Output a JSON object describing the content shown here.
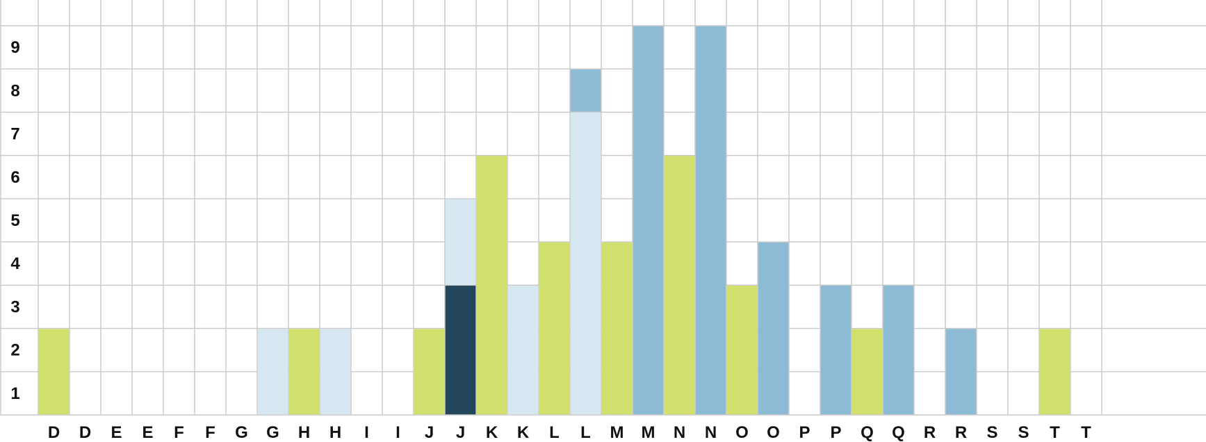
{
  "chart_data": {
    "type": "bar",
    "title": "",
    "xlabel": "",
    "ylabel": "",
    "ylim": [
      0,
      9
    ],
    "grid": true,
    "legend": "none",
    "categories": [
      "D",
      "D",
      "E",
      "E",
      "F",
      "F",
      "G",
      "G",
      "H",
      "H",
      "I",
      "I",
      "J",
      "J",
      "K",
      "K",
      "L",
      "L",
      "M",
      "M",
      "N",
      "N",
      "O",
      "O",
      "P",
      "P",
      "Q",
      "Q",
      "R",
      "R",
      "S",
      "S",
      "T",
      "T"
    ],
    "y_ticks": [
      "1",
      "2",
      "3",
      "4",
      "5",
      "6",
      "7",
      "8",
      "9"
    ],
    "colors": {
      "green": "#d1df6c",
      "light_blue": "#d6e7f1",
      "mid_blue": "#8dbbd6",
      "dark_navy": "#23465a",
      "grid": "#c8c8c8"
    },
    "columns": [
      {
        "index": 0,
        "segments": [
          {
            "color": "green",
            "value": 2
          }
        ]
      },
      {
        "index": 7,
        "segments": [
          {
            "color": "light_blue",
            "value": 2
          }
        ]
      },
      {
        "index": 8,
        "segments": [
          {
            "color": "green",
            "value": 2
          }
        ]
      },
      {
        "index": 9,
        "segments": [
          {
            "color": "light_blue",
            "value": 2
          }
        ]
      },
      {
        "index": 12,
        "segments": [
          {
            "color": "green",
            "value": 2
          }
        ]
      },
      {
        "index": 13,
        "segments": [
          {
            "color": "dark_navy",
            "value": 3
          },
          {
            "color": "light_blue",
            "value": 2
          }
        ]
      },
      {
        "index": 14,
        "segments": [
          {
            "color": "green",
            "value": 6
          }
        ]
      },
      {
        "index": 15,
        "segments": [
          {
            "color": "light_blue",
            "value": 3
          }
        ]
      },
      {
        "index": 16,
        "segments": [
          {
            "color": "green",
            "value": 4
          }
        ]
      },
      {
        "index": 17,
        "segments": [
          {
            "color": "light_blue",
            "value": 7
          },
          {
            "color": "mid_blue",
            "value": 1
          }
        ]
      },
      {
        "index": 18,
        "segments": [
          {
            "color": "green",
            "value": 4
          }
        ]
      },
      {
        "index": 19,
        "segments": [
          {
            "color": "mid_blue",
            "value": 9
          }
        ]
      },
      {
        "index": 20,
        "segments": [
          {
            "color": "green",
            "value": 6
          }
        ]
      },
      {
        "index": 21,
        "segments": [
          {
            "color": "mid_blue",
            "value": 9
          }
        ]
      },
      {
        "index": 22,
        "segments": [
          {
            "color": "green",
            "value": 3
          }
        ]
      },
      {
        "index": 23,
        "segments": [
          {
            "color": "mid_blue",
            "value": 4
          }
        ]
      },
      {
        "index": 25,
        "segments": [
          {
            "color": "mid_blue",
            "value": 3
          }
        ]
      },
      {
        "index": 26,
        "segments": [
          {
            "color": "green",
            "value": 2
          }
        ]
      },
      {
        "index": 27,
        "segments": [
          {
            "color": "mid_blue",
            "value": 3
          }
        ]
      },
      {
        "index": 29,
        "segments": [
          {
            "color": "mid_blue",
            "value": 2
          }
        ]
      },
      {
        "index": 32,
        "segments": [
          {
            "color": "green",
            "value": 2
          }
        ]
      }
    ]
  }
}
